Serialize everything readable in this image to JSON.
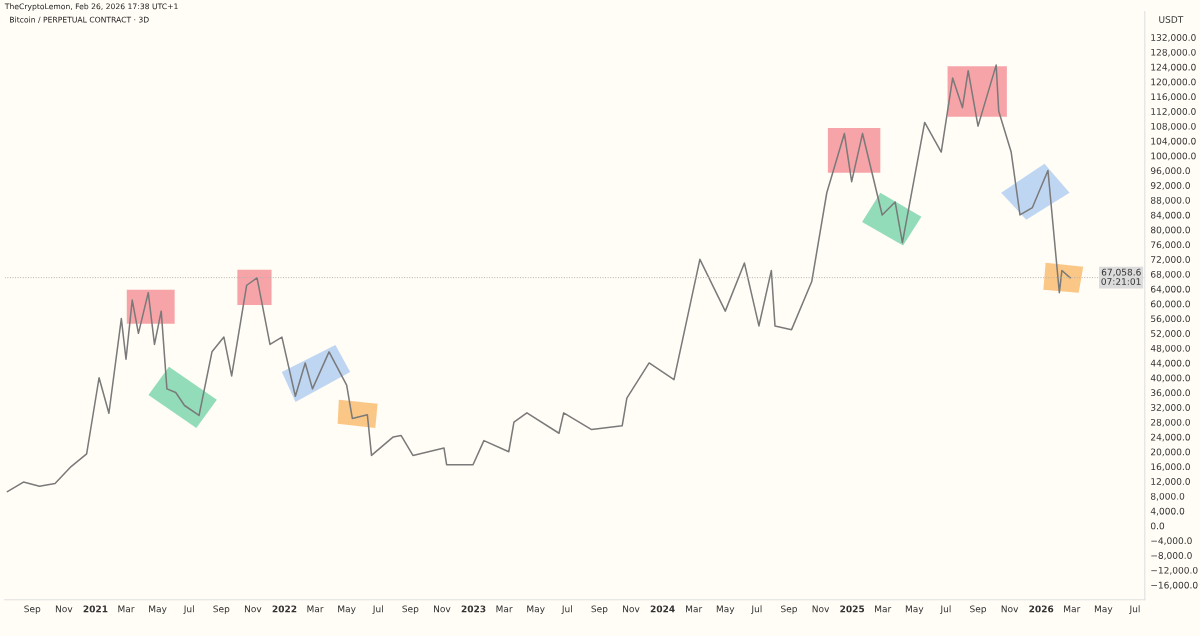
{
  "chart_data": {
    "type": "line",
    "title": "Bitcoin / PERPETUAL CONTRACT · 3D",
    "ylabel": "USDT",
    "annotations": [
      "TheCryptoLemon, Feb 26, 2026 17:38 UTC+1",
      "07:21:01"
    ],
    "x": [
      "2020-07-15",
      "2020-08-15",
      "2020-09-15",
      "2020-10-15",
      "2020-11-15",
      "2020-12-15",
      "2021-01-08",
      "2021-01-27",
      "2021-02-20",
      "2021-03-01",
      "2021-03-13",
      "2021-03-25",
      "2021-04-13",
      "2021-04-25",
      "2021-05-08",
      "2021-05-19",
      "2021-06-05",
      "2021-06-22",
      "2021-07-20",
      "2021-08-14",
      "2021-09-06",
      "2021-09-21",
      "2021-10-20",
      "2021-11-09",
      "2021-12-04",
      "2021-12-27",
      "2022-01-22",
      "2022-02-10",
      "2022-02-24",
      "2022-03-28",
      "2022-05-01",
      "2022-05-12",
      "2022-06-10",
      "2022-06-18",
      "2022-07-30",
      "2022-08-14",
      "2022-09-06",
      "2022-11-05",
      "2022-11-10",
      "2022-12-31",
      "2023-01-21",
      "2023-03-10",
      "2023-03-20",
      "2023-04-14",
      "2023-06-15",
      "2023-06-24",
      "2023-08-17",
      "2023-10-15",
      "2023-10-24",
      "2023-12-06",
      "2024-01-23",
      "2024-03-13",
      "2024-05-01",
      "2024-06-07",
      "2024-07-05",
      "2024-07-29",
      "2024-08-05",
      "2024-09-06",
      "2024-10-15",
      "2024-11-13",
      "2024-12-17",
      "2024-12-31",
      "2025-01-21",
      "2025-02-28",
      "2025-03-25",
      "2025-04-08",
      "2025-05-21",
      "2025-06-22",
      "2025-07-14",
      "2025-08-02",
      "2025-08-13",
      "2025-09-01",
      "2025-10-06",
      "2025-10-11",
      "2025-11-04",
      "2025-11-21",
      "2025-12-15",
      "2026-01-14",
      "2026-02-05",
      "2026-02-10",
      "2026-02-26"
    ],
    "series": [
      {
        "color": "#7a7a7a",
        "values": [
          9200,
          11800,
          10700,
          11400,
          16000,
          19400,
          40000,
          30400,
          56000,
          45000,
          61000,
          52000,
          63000,
          49000,
          58000,
          37000,
          36000,
          32500,
          29800,
          47000,
          51000,
          40500,
          65000,
          67000,
          49000,
          51000,
          35000,
          44000,
          37000,
          47000,
          38000,
          29000,
          30000,
          19000,
          24000,
          24400,
          19000,
          21000,
          16500,
          16500,
          23000,
          20000,
          28000,
          30500,
          25000,
          30500,
          26000,
          27000,
          34500,
          44000,
          39500,
          72000,
          58000,
          71000,
          54000,
          69000,
          54000,
          53000,
          66000,
          90000,
          106000,
          93000,
          106000,
          84000,
          87500,
          76500,
          109000,
          101000,
          121000,
          113000,
          123000,
          108000,
          124500,
          112000,
          101000,
          84000,
          86000,
          96000,
          63000,
          69000,
          67000
        ]
      }
    ],
    "xlim": [
      "2020-07-10",
      "2026-07-20"
    ],
    "xticks": [
      {
        "value": "2020-09-01",
        "label": "Sep"
      },
      {
        "value": "2020-11-01",
        "label": "Nov"
      },
      {
        "value": "2021-01-01",
        "label": "2021"
      },
      {
        "value": "2021-03-01",
        "label": "Mar"
      },
      {
        "value": "2021-05-01",
        "label": "May"
      },
      {
        "value": "2021-07-01",
        "label": "Jul"
      },
      {
        "value": "2021-09-01",
        "label": "Sep"
      },
      {
        "value": "2021-11-01",
        "label": "Nov"
      },
      {
        "value": "2022-01-01",
        "label": "2022"
      },
      {
        "value": "2022-03-01",
        "label": "Mar"
      },
      {
        "value": "2022-05-01",
        "label": "May"
      },
      {
        "value": "2022-07-01",
        "label": "Jul"
      },
      {
        "value": "2022-09-01",
        "label": "Sep"
      },
      {
        "value": "2022-11-01",
        "label": "Nov"
      },
      {
        "value": "2023-01-01",
        "label": "2023"
      },
      {
        "value": "2023-03-01",
        "label": "Mar"
      },
      {
        "value": "2023-05-01",
        "label": "May"
      },
      {
        "value": "2023-07-01",
        "label": "Jul"
      },
      {
        "value": "2023-09-01",
        "label": "Sep"
      },
      {
        "value": "2023-11-01",
        "label": "Nov"
      },
      {
        "value": "2024-01-01",
        "label": "2024"
      },
      {
        "value": "2024-03-01",
        "label": "Mar"
      },
      {
        "value": "2024-05-01",
        "label": "May"
      },
      {
        "value": "2024-07-01",
        "label": "Jul"
      },
      {
        "value": "2024-09-01",
        "label": "Sep"
      },
      {
        "value": "2024-11-01",
        "label": "Nov"
      },
      {
        "value": "2025-01-01",
        "label": "2025"
      },
      {
        "value": "2025-03-01",
        "label": "Mar"
      },
      {
        "value": "2025-05-01",
        "label": "May"
      },
      {
        "value": "2025-07-01",
        "label": "Jul"
      },
      {
        "value": "2025-09-01",
        "label": "Sep"
      },
      {
        "value": "2025-11-01",
        "label": "Nov"
      },
      {
        "value": "2026-01-01",
        "label": "2026"
      },
      {
        "value": "2026-03-01",
        "label": "Mar"
      },
      {
        "value": "2026-05-01",
        "label": "May"
      },
      {
        "value": "2026-07-01",
        "label": "Jul"
      }
    ],
    "ylim": [
      -20000,
      139000
    ],
    "yticks": [
      {
        "value": -16000,
        "label": "−16,000.0"
      },
      {
        "value": -12000,
        "label": "−12,000.0"
      },
      {
        "value": -8000,
        "label": "−8,000.0"
      },
      {
        "value": -4000,
        "label": "−4,000.0"
      },
      {
        "value": 0,
        "label": "0.0"
      },
      {
        "value": 4000,
        "label": "4,000.0"
      },
      {
        "value": 8000,
        "label": "8,000.0"
      },
      {
        "value": 12000,
        "label": "12,000.0"
      },
      {
        "value": 16000,
        "label": "16,000.0"
      },
      {
        "value": 20000,
        "label": "20,000.0"
      },
      {
        "value": 24000,
        "label": "24,000.0"
      },
      {
        "value": 28000,
        "label": "28,000.0"
      },
      {
        "value": 32000,
        "label": "32,000.0"
      },
      {
        "value": 36000,
        "label": "36,000.0"
      },
      {
        "value": 40000,
        "label": "40,000.0"
      },
      {
        "value": 44000,
        "label": "44,000.0"
      },
      {
        "value": 48000,
        "label": "48,000.0"
      },
      {
        "value": 52000,
        "label": "52,000.0"
      },
      {
        "value": 56000,
        "label": "56,000.0"
      },
      {
        "value": 60000,
        "label": "60,000.0"
      },
      {
        "value": 64000,
        "label": "64,000.0"
      },
      {
        "value": 68000,
        "label": "68,000.0"
      },
      {
        "value": 72000,
        "label": "72,000.0"
      },
      {
        "value": 76000,
        "label": "76,000.0"
      },
      {
        "value": 80000,
        "label": "80,000.0"
      },
      {
        "value": 84000,
        "label": "84,000.0"
      },
      {
        "value": 88000,
        "label": "88,000.0"
      },
      {
        "value": 92000,
        "label": "92,000.0"
      },
      {
        "value": 96000,
        "label": "96,000.0"
      },
      {
        "value": 100000,
        "label": "100,000.0"
      },
      {
        "value": 104000,
        "label": "104,000.0"
      },
      {
        "value": 108000,
        "label": "108,000.0"
      },
      {
        "value": 112000,
        "label": "112,000.0"
      },
      {
        "value": 116000,
        "label": "116,000.0"
      },
      {
        "value": 120000,
        "label": "120,000.0"
      },
      {
        "value": 124000,
        "label": "124,000.0"
      },
      {
        "value": 128000,
        "label": "128,000.0"
      },
      {
        "value": 132000,
        "label": "132,000.0"
      }
    ],
    "ref_lines": [
      {
        "axis": "y",
        "value": 67058.6,
        "label": "67,058.6",
        "color": "#b0b0b0",
        "line_style": "dotted"
      }
    ]
  }
}
